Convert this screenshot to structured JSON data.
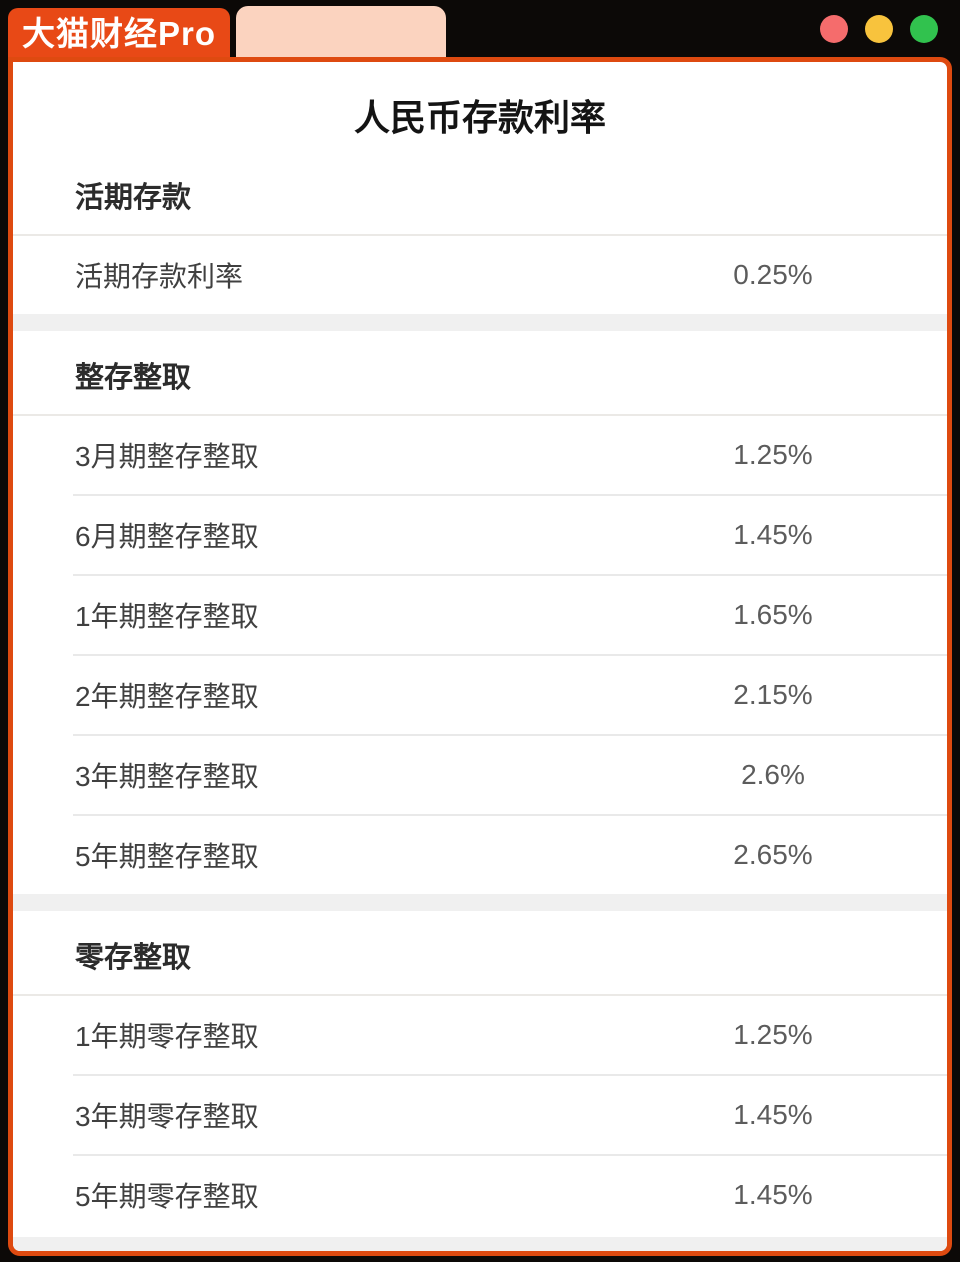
{
  "window": {
    "logo_label": "大猫财经Pro",
    "blank_tab_label": "",
    "traffic_lights": [
      {
        "name": "red",
        "color": "#f56c6c"
      },
      {
        "name": "yellow",
        "color": "#f8c33d"
      },
      {
        "name": "green",
        "color": "#31c24e"
      }
    ]
  },
  "colors": {
    "accent_orange": "#de4a10",
    "logo_orange": "#e84916",
    "tab_peach": "#fbd3bf",
    "page_black": "#0c0907",
    "band_gray": "#f0f0f0"
  },
  "table": {
    "title": "人民币存款利率",
    "sections": [
      {
        "header": "活期存款",
        "rows": [
          {
            "label": "活期存款利率",
            "value": "0.25%"
          }
        ]
      },
      {
        "header": "整存整取",
        "rows": [
          {
            "label": "3月期整存整取",
            "value": "1.25%"
          },
          {
            "label": "6月期整存整取",
            "value": "1.45%"
          },
          {
            "label": "1年期整存整取",
            "value": "1.65%"
          },
          {
            "label": "2年期整存整取",
            "value": "2.15%"
          },
          {
            "label": "3年期整存整取",
            "value": "2.6%"
          },
          {
            "label": "5年期整存整取",
            "value": "2.65%"
          }
        ]
      },
      {
        "header": "零存整取",
        "rows": [
          {
            "label": "1年期零存整取",
            "value": "1.25%"
          },
          {
            "label": "3年期零存整取",
            "value": "1.45%"
          },
          {
            "label": "5年期零存整取",
            "value": "1.45%"
          }
        ]
      }
    ]
  },
  "chart_data": {
    "type": "table",
    "title": "人民币存款利率",
    "categories": [
      "活期存款利率",
      "3月期整存整取",
      "6月期整存整取",
      "1年期整存整取",
      "2年期整存整取",
      "3年期整存整取",
      "5年期整存整取",
      "1年期零存整取",
      "3年期零存整取",
      "5年期零存整取"
    ],
    "values_percent": [
      0.25,
      1.25,
      1.45,
      1.65,
      2.15,
      2.6,
      2.65,
      1.25,
      1.45,
      1.45
    ]
  }
}
